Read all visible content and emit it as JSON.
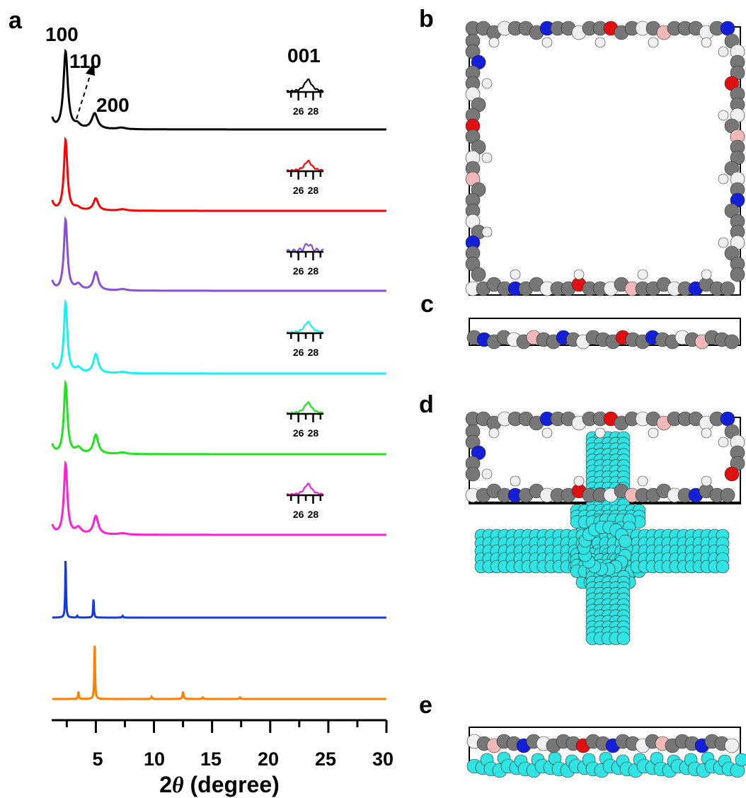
{
  "panels": {
    "a": "a",
    "b": "b",
    "c": "c",
    "d": "d",
    "e": "e"
  },
  "colors": {
    "black": "#000000",
    "red": "#ff0000",
    "purple": "#8a4fd8",
    "cyan": "#17f1f1",
    "green": "#1ee31e",
    "magenta": "#ff1ed8",
    "blue": "#1238e8",
    "orange": "#ff7f00",
    "atom_c": "#777777",
    "atom_n": "#1420d8",
    "atom_o": "#e01010",
    "atom_h": "#f0f0f0",
    "atom_b": "#f0b8b8",
    "guest": "#30e4e4"
  },
  "chart_data": {
    "type": "line",
    "xlabel_prefix": "2",
    "xlabel_symbol": "θ",
    "xlabel_suffix": " (degree)",
    "xlim": [
      1.2,
      30
    ],
    "xticks": [
      5,
      10,
      15,
      20,
      25,
      30
    ],
    "peak_labels": [
      "100",
      "110",
      "200"
    ],
    "inset_label": "001",
    "inset_ticks": [
      "26",
      "28"
    ],
    "series": [
      {
        "color": "#000000",
        "peaks": [
          [
            2.4,
            1.0,
            0.22
          ],
          [
            3.4,
            0.05,
            0.3
          ],
          [
            4.9,
            0.2,
            0.3
          ],
          [
            7.2,
            0.02,
            0.4
          ]
        ],
        "inset_peak": 0.55
      },
      {
        "color": "#ff0000",
        "peaks": [
          [
            2.4,
            1.0,
            0.18
          ],
          [
            3.4,
            0.04,
            0.3
          ],
          [
            5.0,
            0.17,
            0.25
          ],
          [
            7.3,
            0.02,
            0.4
          ]
        ],
        "inset_peak": 0.45
      },
      {
        "color": "#8a4fd8",
        "peaks": [
          [
            2.4,
            1.0,
            0.18
          ],
          [
            3.5,
            0.08,
            0.3
          ],
          [
            5.0,
            0.26,
            0.25
          ],
          [
            7.3,
            0.02,
            0.4
          ]
        ],
        "inset_peak": 0.35
      },
      {
        "color": "#17f1f1",
        "peaks": [
          [
            2.4,
            1.0,
            0.18
          ],
          [
            3.5,
            0.07,
            0.3
          ],
          [
            5.0,
            0.27,
            0.25
          ],
          [
            7.3,
            0.02,
            0.4
          ]
        ],
        "inset_peak": 0.5
      },
      {
        "color": "#1ee31e",
        "peaks": [
          [
            2.4,
            1.0,
            0.18
          ],
          [
            3.5,
            0.08,
            0.3
          ],
          [
            5.0,
            0.27,
            0.25
          ],
          [
            7.3,
            0.02,
            0.4
          ]
        ],
        "inset_peak": 0.5
      },
      {
        "color": "#ff1ed8",
        "peaks": [
          [
            2.4,
            1.0,
            0.18
          ],
          [
            3.5,
            0.09,
            0.3
          ],
          [
            5.0,
            0.26,
            0.25
          ],
          [
            7.3,
            0.02,
            0.4
          ]
        ],
        "inset_peak": 0.5
      },
      {
        "color": "#1238e8",
        "peaks": [
          [
            2.4,
            1.0,
            0.04
          ],
          [
            3.4,
            0.03,
            0.04
          ],
          [
            4.8,
            0.32,
            0.04
          ],
          [
            7.3,
            0.03,
            0.05
          ]
        ],
        "inset_peak": null
      },
      {
        "color": "#ff7f00",
        "peaks": [
          [
            3.5,
            0.13,
            0.04
          ],
          [
            4.9,
            1.0,
            0.04
          ],
          [
            9.8,
            0.04,
            0.05
          ],
          [
            12.5,
            0.13,
            0.05
          ],
          [
            14.2,
            0.03,
            0.05
          ],
          [
            17.4,
            0.03,
            0.05
          ]
        ],
        "inset_peak": null
      }
    ]
  }
}
